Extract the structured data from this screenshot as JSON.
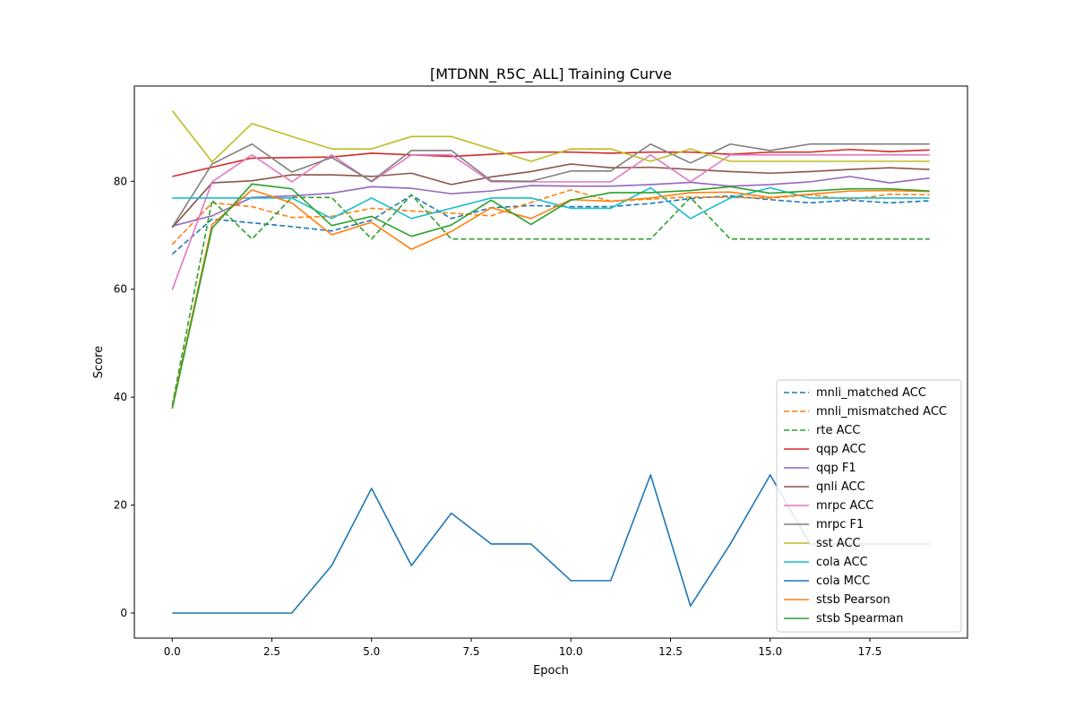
{
  "chart_data": {
    "type": "line",
    "title": "[MTDNN_R5C_ALL] Training Curve",
    "xlabel": "Epoch",
    "ylabel": "Score",
    "xlim": [
      -0.95,
      19.95
    ],
    "ylim": [
      -4.65,
      97.65
    ],
    "xticks": [
      0,
      2.5,
      5,
      7.5,
      10,
      12.5,
      15,
      17.5
    ],
    "xtick_labels": [
      "0.0",
      "2.5",
      "5.0",
      "7.5",
      "10.0",
      "12.5",
      "15.0",
      "17.5"
    ],
    "yticks": [
      0,
      20,
      40,
      60,
      80
    ],
    "ytick_labels": [
      "0",
      "20",
      "40",
      "60",
      "80"
    ],
    "grid": false,
    "legend_position": "lower-right",
    "x": [
      0,
      1,
      2,
      3,
      4,
      5,
      6,
      7,
      8,
      9,
      10,
      11,
      12,
      13,
      14,
      15,
      16,
      17,
      18,
      19
    ],
    "series": [
      {
        "name": "mnli_matched ACC",
        "color": "#1f77b4",
        "dash": true,
        "values": [
          66.5,
          73.0,
          72.3,
          71.6,
          70.8,
          72.8,
          77.4,
          73.1,
          75.1,
          75.5,
          75.3,
          75.3,
          75.9,
          76.8,
          77.3,
          76.6,
          76.0,
          76.5,
          76.0,
          76.4
        ]
      },
      {
        "name": "mnli_mismatched ACC",
        "color": "#ff7f0e",
        "dash": true,
        "values": [
          68.3,
          76.0,
          75.3,
          73.3,
          73.5,
          75.0,
          74.5,
          74.1,
          73.6,
          76.1,
          78.4,
          76.3,
          76.7,
          77.1,
          77.0,
          76.9,
          77.5,
          76.6,
          77.6,
          77.5
        ]
      },
      {
        "name": "rte ACC",
        "color": "#2ca02c",
        "dash": true,
        "values": [
          38.5,
          76.5,
          69.3,
          77.0,
          77.0,
          69.3,
          77.5,
          69.3,
          69.3,
          69.3,
          69.3,
          69.3,
          69.3,
          77.0,
          69.3,
          69.3,
          69.3,
          69.3,
          69.3,
          69.3
        ]
      },
      {
        "name": "qqp ACC",
        "color": "#d62728",
        "dash": false,
        "values": [
          80.9,
          82.6,
          84.3,
          84.4,
          84.5,
          85.2,
          84.9,
          84.6,
          85.0,
          85.4,
          85.4,
          85.2,
          85.4,
          85.4,
          85.0,
          85.4,
          85.4,
          85.9,
          85.5,
          85.8
        ]
      },
      {
        "name": "qqp F1",
        "color": "#9467bd",
        "dash": false,
        "values": [
          71.7,
          73.6,
          77.0,
          77.3,
          77.8,
          79.0,
          78.7,
          77.7,
          78.2,
          79.2,
          79.1,
          79.1,
          79.4,
          79.8,
          79.1,
          79.4,
          79.9,
          80.9,
          79.7,
          80.6
        ]
      },
      {
        "name": "qnli ACC",
        "color": "#8c564b",
        "dash": false,
        "values": [
          71.4,
          79.7,
          80.1,
          81.2,
          81.2,
          80.9,
          81.5,
          79.4,
          80.8,
          81.8,
          83.2,
          82.5,
          82.6,
          82.2,
          81.8,
          81.5,
          81.8,
          82.2,
          82.5,
          82.2
        ]
      },
      {
        "name": "mrpc ACC",
        "color": "#e377c2",
        "dash": false,
        "values": [
          59.9,
          79.9,
          84.9,
          79.9,
          84.9,
          79.9,
          84.9,
          84.9,
          79.9,
          79.9,
          79.9,
          79.9,
          84.9,
          79.9,
          84.9,
          84.9,
          84.9,
          84.9,
          84.9,
          84.9
        ]
      },
      {
        "name": "mrpc F1",
        "color": "#7f7f7f",
        "dash": false,
        "values": [
          71.5,
          83.2,
          86.9,
          81.7,
          84.4,
          80.0,
          85.7,
          85.7,
          80.1,
          80.0,
          81.9,
          81.9,
          86.9,
          83.4,
          86.9,
          85.7,
          86.9,
          86.9,
          86.9,
          86.9
        ]
      },
      {
        "name": "sst ACC",
        "color": "#bcbd22",
        "dash": false,
        "values": [
          93.1,
          83.6,
          90.7,
          88.3,
          86.0,
          86.0,
          88.3,
          88.3,
          86.0,
          83.7,
          86.0,
          86.0,
          83.7,
          86.0,
          83.7,
          83.7,
          83.7,
          83.7,
          83.7,
          83.7
        ]
      },
      {
        "name": "cola ACC",
        "color": "#17becf",
        "dash": false,
        "values": [
          76.9,
          76.9,
          76.9,
          76.9,
          73.1,
          76.9,
          73.1,
          75.0,
          76.9,
          76.9,
          75.0,
          75.0,
          78.8,
          73.1,
          76.9,
          78.8,
          76.9,
          76.9,
          76.9,
          76.9
        ]
      },
      {
        "name": "cola MCC",
        "color": "#1f77b4",
        "dash": false,
        "values": [
          0.0,
          0.0,
          0.0,
          0.0,
          8.8,
          23.1,
          8.8,
          18.5,
          12.8,
          12.8,
          6.0,
          6.0,
          25.6,
          1.3,
          12.8,
          25.6,
          12.8,
          12.8,
          12.8,
          12.8
        ]
      },
      {
        "name": "stsb Pearson",
        "color": "#ff7f0e",
        "dash": false,
        "values": [
          38.2,
          72.0,
          78.4,
          76.0,
          70.1,
          72.4,
          67.4,
          70.7,
          75.1,
          73.1,
          76.6,
          76.3,
          76.9,
          77.9,
          78.0,
          77.0,
          77.6,
          78.2,
          78.3,
          78.1
        ]
      },
      {
        "name": "stsb Spearman",
        "color": "#2ca02c",
        "dash": false,
        "values": [
          37.9,
          71.3,
          79.5,
          78.6,
          71.8,
          73.5,
          69.8,
          71.9,
          76.5,
          72.0,
          76.5,
          77.9,
          77.9,
          78.3,
          79.0,
          77.8,
          78.2,
          78.6,
          78.6,
          78.2
        ]
      }
    ]
  }
}
